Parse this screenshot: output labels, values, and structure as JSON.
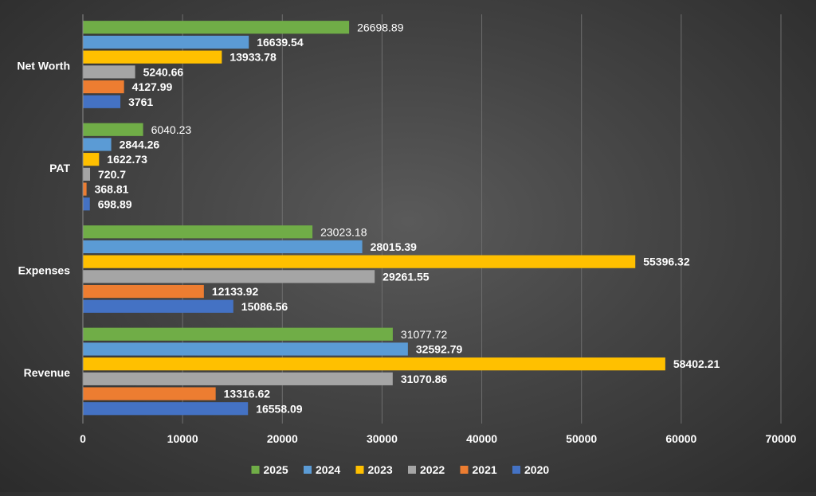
{
  "chart_data": {
    "type": "bar",
    "orientation": "horizontal",
    "categories": [
      "Net Worth",
      "PAT",
      "Expenses",
      "Revenue"
    ],
    "series": [
      {
        "name": "2025",
        "color": "#70ad47",
        "values": [
          26698.89,
          6040.23,
          23023.18,
          31077.72
        ]
      },
      {
        "name": "2024",
        "color": "#5b9bd5",
        "values": [
          16639.54,
          2844.26,
          28015.39,
          32592.79
        ]
      },
      {
        "name": "2023",
        "color": "#ffc000",
        "values": [
          13933.78,
          1622.73,
          55396.32,
          58402.21
        ]
      },
      {
        "name": "2022",
        "color": "#a5a5a5",
        "values": [
          5240.66,
          720.7,
          29261.55,
          31070.86
        ]
      },
      {
        "name": "2021",
        "color": "#ed7d31",
        "values": [
          4127.99,
          368.81,
          12133.92,
          13316.62
        ]
      },
      {
        "name": "2020",
        "color": "#4472c4",
        "values": [
          3761,
          698.89,
          15086.56,
          16558.09
        ]
      }
    ],
    "data_labels": [
      [
        "26698.89",
        "16639.54",
        "13933.78",
        "5240.66",
        "4127.99",
        "3761"
      ],
      [
        "6040.23",
        "2844.26",
        "1622.73",
        "720.7",
        "368.81",
        "698.89"
      ],
      [
        "23023.18",
        "28015.39",
        "55396.32",
        "29261.55",
        "12133.92",
        "15086.56"
      ],
      [
        "31077.72",
        "32592.79",
        "58402.21",
        "31070.86",
        "13316.62",
        "16558.09"
      ]
    ],
    "xlim": [
      0,
      70000
    ],
    "xticks": [
      0,
      10000,
      20000,
      30000,
      40000,
      50000,
      60000,
      70000
    ],
    "xtick_labels": [
      "0",
      "10000",
      "20000",
      "30000",
      "40000",
      "50000",
      "60000",
      "70000"
    ],
    "title": "",
    "xlabel": "",
    "ylabel": "",
    "grid": true,
    "legend_position": "bottom"
  }
}
